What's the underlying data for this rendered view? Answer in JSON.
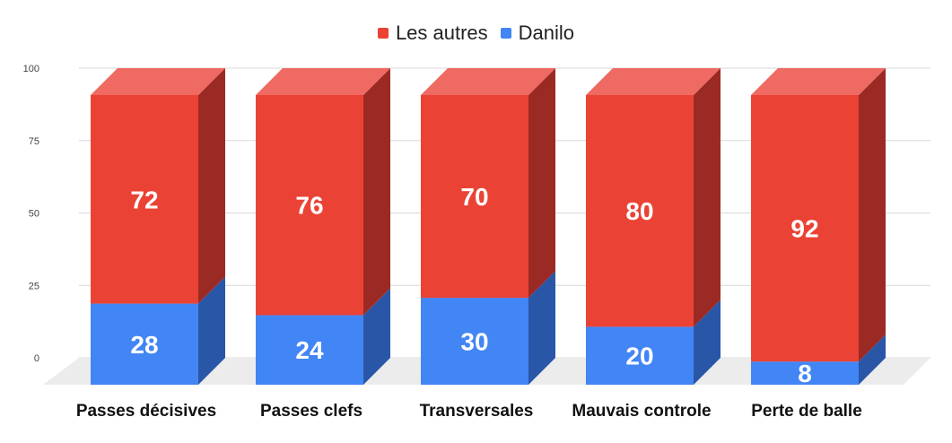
{
  "chart_data": {
    "type": "bar",
    "stacked": true,
    "style": "3d",
    "categories": [
      "Passes décisives",
      "Passes clefs",
      "Transversales",
      "Mauvais controle",
      "Perte de balle"
    ],
    "series": [
      {
        "name": "Danilo",
        "values": [
          28,
          24,
          30,
          20,
          8
        ],
        "color": "#4285f4",
        "side_color": "#2a56a8"
      },
      {
        "name": "Les autres",
        "values": [
          72,
          76,
          70,
          80,
          92
        ],
        "color": "#ea4335",
        "side_color": "#9c2a24",
        "top_color": "#ee6a62"
      }
    ],
    "legend_order": [
      "Les autres",
      "Danilo"
    ],
    "y_ticks": [
      0,
      25,
      50,
      75,
      100
    ],
    "ylim": [
      0,
      100
    ],
    "grid": true,
    "legend_position": "top"
  }
}
